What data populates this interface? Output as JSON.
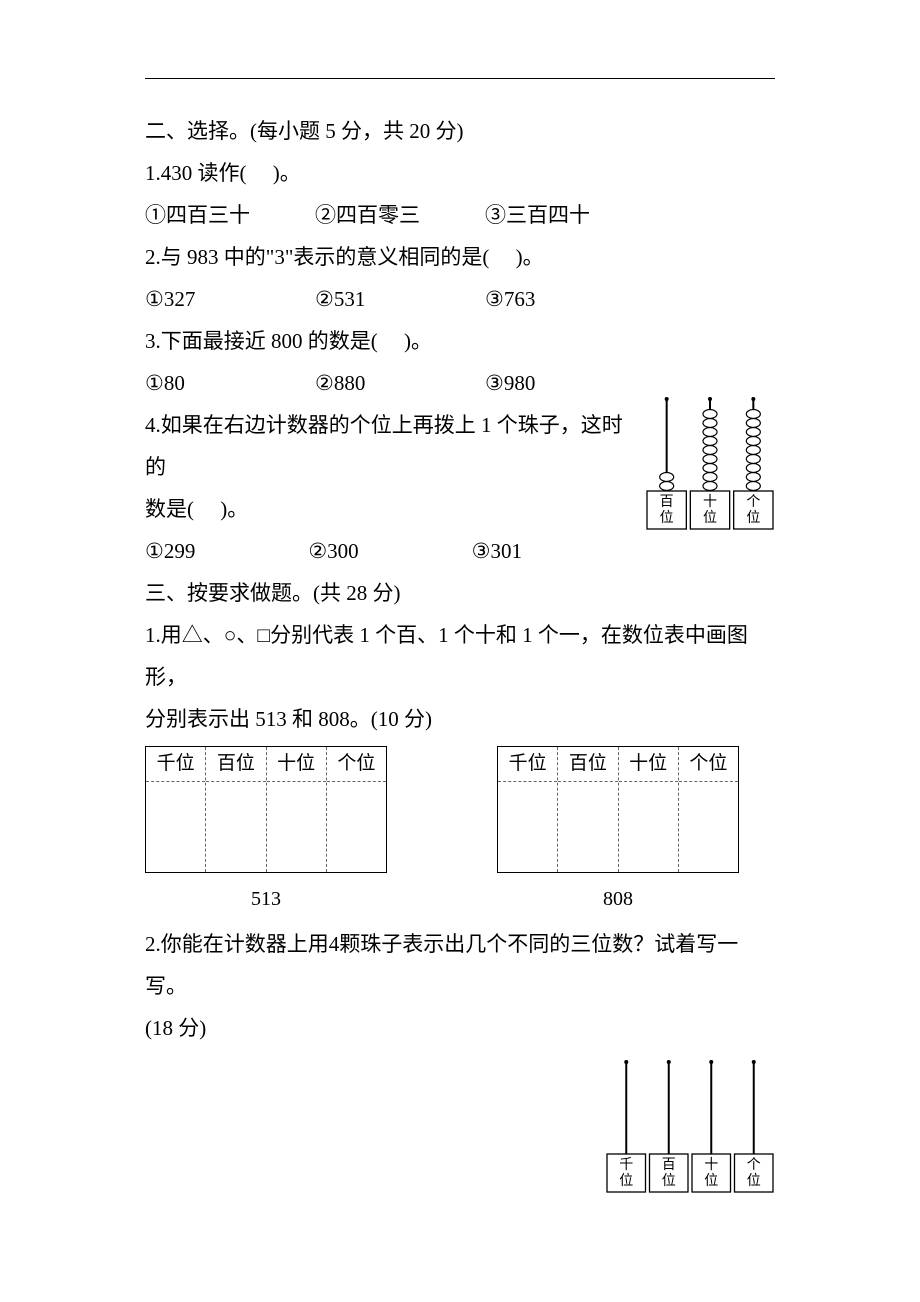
{
  "section2": {
    "heading": "二、选择。(每小题 5 分，共 20 分)",
    "q1": {
      "stem_a": "1.430 读作(",
      "stem_b": ")。",
      "opts": [
        "①四百三十",
        "②四百零三",
        "③三百四十"
      ]
    },
    "q2": {
      "stem_a": "2.与 983 中的\"3\"表示的意义相同的是(",
      "stem_b": ")。",
      "opts": [
        "①327",
        "②531",
        "③763"
      ]
    },
    "q3": {
      "stem_a": "3.下面最接近 800 的数是(",
      "stem_b": ")。",
      "opts": [
        "①80",
        "②880",
        "③980"
      ]
    },
    "q4": {
      "stem_line1": "4.如果在右边计数器的个位上再拨上 1 个珠子，这时的",
      "stem_line2_a": "数是(",
      "stem_line2_b": ")。",
      "opts": [
        "①299",
        "②300",
        "③301"
      ],
      "counter": {
        "labels": [
          "百位",
          "十位",
          "个位"
        ],
        "beads": [
          2,
          9,
          9
        ]
      }
    }
  },
  "section3": {
    "heading": "三、按要求做题。(共 28 分)",
    "q1": {
      "line1": "1.用△、○、□分别代表 1 个百、1 个十和 1 个一，在数位表中画图形，",
      "line2": "分别表示出 513 和 808。(10 分)",
      "headers": [
        "千位",
        "百位",
        "十位",
        "个位"
      ],
      "captions": [
        "513",
        "808"
      ]
    },
    "q2": {
      "line1": "2.你能在计数器上用4颗珠子表示出几个不同的三位数？试着写一写。",
      "line2": "(18 分)",
      "counter": {
        "labels": [
          "千位",
          "百位",
          "十位",
          "个位"
        ],
        "beads": [
          0,
          0,
          0,
          0
        ]
      }
    }
  }
}
